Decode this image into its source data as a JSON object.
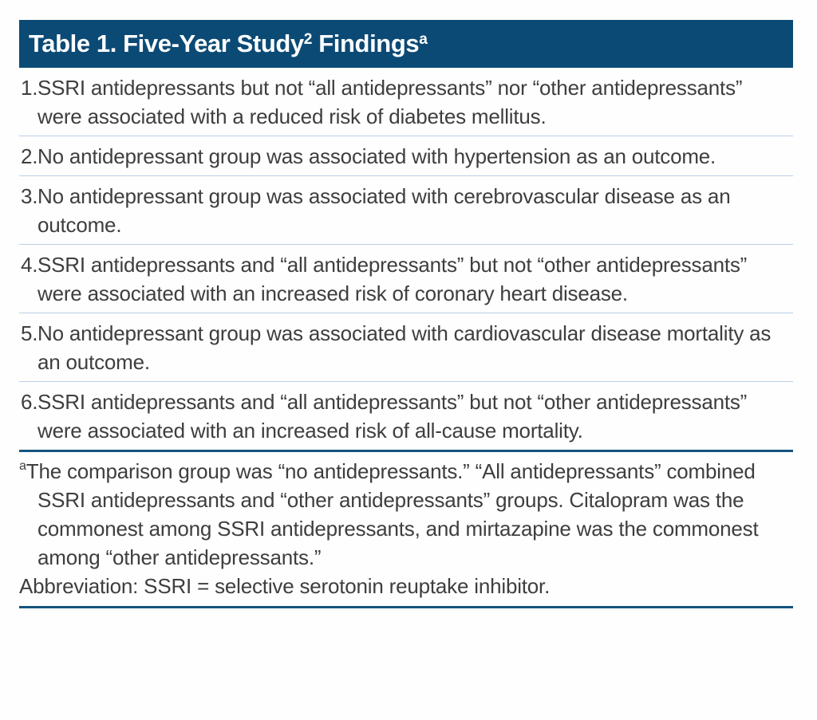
{
  "page": {
    "background": "#fdfefd"
  },
  "table": {
    "title": {
      "text_before_citation": "Table 1. Five-Year Study",
      "citation": "2",
      "text_after_citation": " Findings",
      "footnote_marker": "a"
    },
    "items": [
      {
        "number": "1.",
        "text": "SSRI antidepressants but not “all antidepressants” nor “other antidepressants” were associated with a reduced risk of diabetes mellitus."
      },
      {
        "number": "2.",
        "text": "No antidepressant group was associated with hypertension as an outcome."
      },
      {
        "number": "3.",
        "text": "No antidepressant group was associated with cerebrovascular disease as an outcome."
      },
      {
        "number": "4.",
        "text": "SSRI antidepressants and “all antidepressants” but not “other antidepressants” were associated with an increased risk of coronary heart disease."
      },
      {
        "number": "5.",
        "text": "No antidepressant group was associated with cardiovascular disease mortality as an outcome."
      },
      {
        "number": "6.",
        "text": "SSRI antidepressants and “all antidepressants” but not “other antidepressants” were associated with an increased risk of all-cause mortality."
      }
    ],
    "footnote": {
      "marker": "a",
      "text": "The comparison group was “no antidepressants.” “All antidepressants” combined SSRI antidepressants and “other antidepressants” groups. Citalopram was the commonest among SSRI antidepressants, and mirtazapine was the commonest among “other antidepressants.”",
      "abbreviation": "Abbreviation: SSRI = selective serotonin reuptake inhibitor."
    },
    "colors": {
      "header_bg": "#0b4a75",
      "rule_dark": "#14547f",
      "rule_light": "#bccee8",
      "text": "#3e3e3e",
      "title_text": "#ffffff",
      "page_bg": "#fdfefd"
    }
  }
}
